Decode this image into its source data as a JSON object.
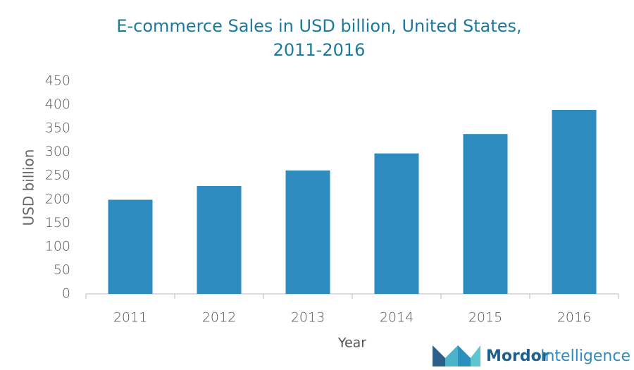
{
  "chart_data": {
    "type": "bar",
    "title_lines": [
      "E-commerce Sales in USD billion, United States,",
      "2011-2016"
    ],
    "x_label": "Year",
    "y_label": "USD billion",
    "categories": [
      "2011",
      "2012",
      "2013",
      "2014",
      "2015",
      "2016"
    ],
    "values": [
      199,
      228,
      261,
      297,
      338,
      389
    ],
    "color": "#2e8bc0",
    "ylim": [
      0,
      450
    ],
    "yticks": [
      0,
      50,
      100,
      150,
      200,
      250,
      300,
      350,
      400,
      450
    ],
    "grid": false
  },
  "logo": {
    "brand": "Mordor",
    "suffix": "Intelligence"
  }
}
